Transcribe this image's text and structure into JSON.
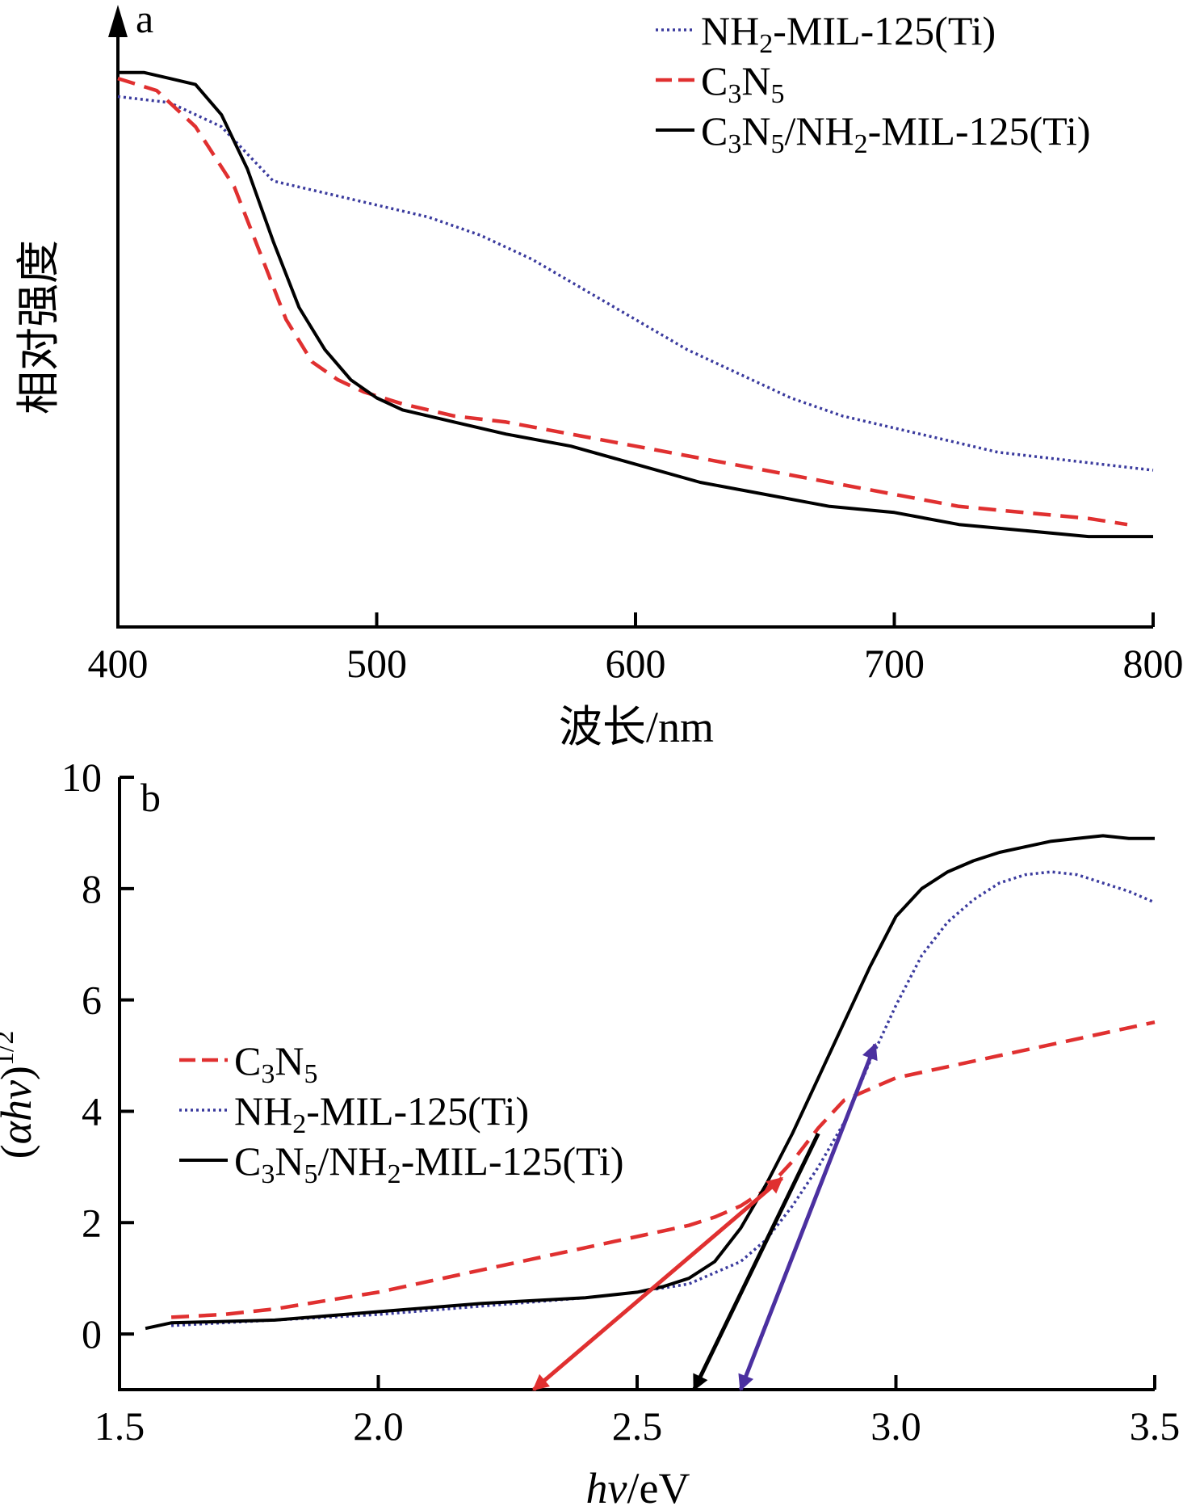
{
  "chart_data": [
    {
      "panel": "a",
      "type": "line",
      "xlabel": "波长/nm",
      "ylabel": "相对强度",
      "xlim": [
        400,
        800
      ],
      "x_ticks": [
        "400",
        "500",
        "600",
        "700",
        "800"
      ],
      "y_ticks_shown": false,
      "legend_position": "top-right",
      "series": [
        {
          "name": "NH2-MIL-125(Ti)",
          "name_parts": [
            [
              "NH",
              "normal"
            ],
            [
              "2",
              "sub"
            ],
            [
              "-MIL-125(Ti)",
              "normal"
            ]
          ],
          "style": "dotted",
          "color": "#3b3b9e",
          "x": [
            400,
            420,
            440,
            460,
            480,
            500,
            520,
            540,
            560,
            580,
            600,
            620,
            640,
            660,
            680,
            700,
            720,
            740,
            760,
            780,
            800
          ],
          "y": [
            0.88,
            0.87,
            0.83,
            0.74,
            0.72,
            0.7,
            0.68,
            0.65,
            0.61,
            0.56,
            0.51,
            0.46,
            0.42,
            0.38,
            0.35,
            0.33,
            0.31,
            0.29,
            0.28,
            0.27,
            0.26
          ]
        },
        {
          "name": "C3N5",
          "name_parts": [
            [
              "C",
              "normal"
            ],
            [
              "3",
              "sub"
            ],
            [
              "N",
              "normal"
            ],
            [
              "5",
              "sub"
            ]
          ],
          "style": "dashed",
          "color": "#e03030",
          "x": [
            400,
            415,
            430,
            445,
            455,
            465,
            475,
            485,
            495,
            510,
            530,
            550,
            575,
            600,
            625,
            650,
            675,
            700,
            725,
            750,
            775,
            790
          ],
          "y": [
            0.91,
            0.89,
            0.83,
            0.73,
            0.62,
            0.51,
            0.44,
            0.41,
            0.39,
            0.37,
            0.35,
            0.34,
            0.32,
            0.3,
            0.28,
            0.26,
            0.24,
            0.22,
            0.2,
            0.19,
            0.18,
            0.17
          ]
        },
        {
          "name": "C3N5/NH2-MIL-125(Ti)",
          "name_parts": [
            [
              "C",
              "normal"
            ],
            [
              "3",
              "sub"
            ],
            [
              "N",
              "normal"
            ],
            [
              "5",
              "sub"
            ],
            [
              "/NH",
              "normal"
            ],
            [
              "2",
              "sub"
            ],
            [
              "-MIL-125(Ti)",
              "normal"
            ]
          ],
          "style": "solid",
          "color": "#000000",
          "x": [
            400,
            410,
            420,
            430,
            440,
            450,
            460,
            470,
            480,
            490,
            500,
            510,
            530,
            550,
            575,
            600,
            625,
            650,
            675,
            700,
            725,
            750,
            775,
            800
          ],
          "y": [
            0.92,
            0.92,
            0.91,
            0.9,
            0.85,
            0.76,
            0.64,
            0.53,
            0.46,
            0.41,
            0.38,
            0.36,
            0.34,
            0.32,
            0.3,
            0.27,
            0.24,
            0.22,
            0.2,
            0.19,
            0.17,
            0.16,
            0.15,
            0.15
          ]
        }
      ]
    },
    {
      "panel": "b",
      "type": "line",
      "xlabel": "hv/eV",
      "ylabel": "(αhv)1/2",
      "xlim": [
        1.5,
        3.5
      ],
      "ylim": [
        -1,
        10
      ],
      "x_ticks": [
        "1.5",
        "2.0",
        "2.5",
        "3.0",
        "3.5"
      ],
      "y_ticks": [
        "0",
        "2",
        "4",
        "6",
        "8",
        "10"
      ],
      "legend_position": "middle-left",
      "series": [
        {
          "name": "C3N5",
          "name_parts": [
            [
              "C",
              "normal"
            ],
            [
              "3",
              "sub"
            ],
            [
              "N",
              "normal"
            ],
            [
              "5",
              "sub"
            ]
          ],
          "style": "dashed",
          "color": "#e03030",
          "x": [
            1.6,
            1.7,
            1.8,
            1.9,
            2.0,
            2.1,
            2.2,
            2.3,
            2.4,
            2.5,
            2.6,
            2.65,
            2.7,
            2.75,
            2.8,
            2.85,
            2.9,
            3.0,
            3.1,
            3.2,
            3.3,
            3.4,
            3.5
          ],
          "y": [
            0.3,
            0.35,
            0.45,
            0.6,
            0.75,
            0.95,
            1.15,
            1.35,
            1.55,
            1.75,
            1.95,
            2.1,
            2.3,
            2.6,
            3.1,
            3.7,
            4.2,
            4.6,
            4.8,
            5.0,
            5.2,
            5.4,
            5.6
          ]
        },
        {
          "name": "NH2-MIL-125(Ti)",
          "name_parts": [
            [
              "NH",
              "normal"
            ],
            [
              "2",
              "sub"
            ],
            [
              "-MIL-125(Ti)",
              "normal"
            ]
          ],
          "style": "dotted",
          "color": "#3b3b9e",
          "x": [
            1.6,
            1.8,
            2.0,
            2.2,
            2.4,
            2.5,
            2.6,
            2.7,
            2.75,
            2.8,
            2.85,
            2.9,
            2.95,
            3.0,
            3.05,
            3.1,
            3.15,
            3.2,
            3.25,
            3.3,
            3.35,
            3.4,
            3.45,
            3.5
          ],
          "y": [
            0.15,
            0.25,
            0.35,
            0.5,
            0.65,
            0.75,
            0.9,
            1.3,
            1.7,
            2.3,
            3.0,
            3.8,
            4.9,
            5.9,
            6.8,
            7.4,
            7.8,
            8.1,
            8.25,
            8.3,
            8.25,
            8.1,
            7.95,
            7.75
          ]
        },
        {
          "name": "C3N5/NH2-MIL-125(Ti)",
          "name_parts": [
            [
              "C",
              "normal"
            ],
            [
              "3",
              "sub"
            ],
            [
              "N",
              "normal"
            ],
            [
              "5",
              "sub"
            ],
            [
              "/NH",
              "normal"
            ],
            [
              "2",
              "sub"
            ],
            [
              "-MIL-125(Ti)",
              "normal"
            ]
          ],
          "style": "solid",
          "color": "#000000",
          "x": [
            1.55,
            1.6,
            1.8,
            2.0,
            2.2,
            2.4,
            2.5,
            2.55,
            2.6,
            2.65,
            2.7,
            2.75,
            2.8,
            2.85,
            2.9,
            2.95,
            3.0,
            3.05,
            3.1,
            3.15,
            3.2,
            3.25,
            3.3,
            3.35,
            3.4,
            3.45,
            3.5
          ],
          "y": [
            0.1,
            0.2,
            0.25,
            0.4,
            0.55,
            0.65,
            0.75,
            0.85,
            1.0,
            1.3,
            1.9,
            2.7,
            3.6,
            4.6,
            5.6,
            6.6,
            7.5,
            8.0,
            8.3,
            8.5,
            8.65,
            8.75,
            8.85,
            8.9,
            8.95,
            8.9,
            8.9
          ]
        }
      ],
      "arrows": [
        {
          "color": "#e03030",
          "from": [
            2.78,
            2.8
          ],
          "to": [
            2.3,
            -1.0
          ],
          "double": true
        },
        {
          "color": "#000000",
          "from": [
            2.85,
            3.6
          ],
          "to": [
            2.61,
            -1.0
          ],
          "double": false
        },
        {
          "color": "#4b30a0",
          "from": [
            2.96,
            5.2
          ],
          "to": [
            2.7,
            -1.0
          ],
          "double": true
        }
      ]
    }
  ]
}
